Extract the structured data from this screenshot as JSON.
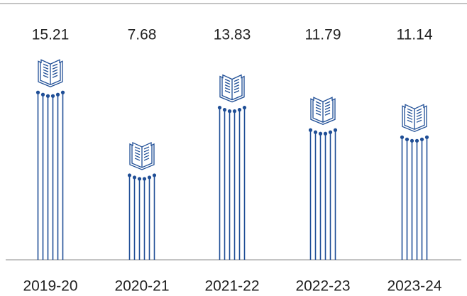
{
  "chart_data": {
    "type": "pictograph",
    "categories": [
      "2019-20",
      "2020-21",
      "2021-22",
      "2022-23",
      "2023-24"
    ],
    "values": [
      15.21,
      7.68,
      13.83,
      11.79,
      11.14
    ],
    "color": "#1f4e96",
    "ylim": [
      0,
      16
    ]
  }
}
